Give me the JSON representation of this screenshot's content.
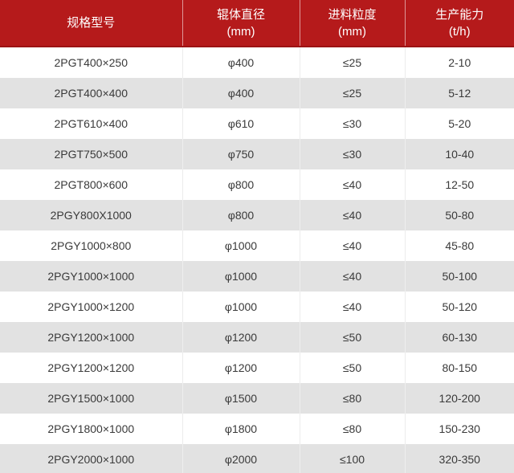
{
  "colors": {
    "header_bg": "#b51a1b",
    "header_bottom_border": "#9c1314",
    "header_text": "#ffffff",
    "row_alt_bg": "#e2e2e2",
    "row_bg": "#ffffff",
    "divider": "#ececec",
    "body_text": "#3a3a3a"
  },
  "table": {
    "columns": [
      {
        "label": "规格型号",
        "unit": ""
      },
      {
        "label": "辊体直径",
        "unit": "(mm)"
      },
      {
        "label": "进料粒度",
        "unit": "(mm)"
      },
      {
        "label": "生产能力",
        "unit": "(t/h)"
      }
    ],
    "rows": [
      {
        "model": "2PGT400×250",
        "diameter": "φ400",
        "feed_size": "≤25",
        "capacity": "2-10"
      },
      {
        "model": "2PGT400×400",
        "diameter": "φ400",
        "feed_size": "≤25",
        "capacity": "5-12"
      },
      {
        "model": "2PGT610×400",
        "diameter": "φ610",
        "feed_size": "≤30",
        "capacity": "5-20"
      },
      {
        "model": "2PGT750×500",
        "diameter": "φ750",
        "feed_size": "≤30",
        "capacity": "10-40"
      },
      {
        "model": "2PGT800×600",
        "diameter": "φ800",
        "feed_size": "≤40",
        "capacity": "12-50"
      },
      {
        "model": "2PGY800X1000",
        "diameter": "φ800",
        "feed_size": "≤40",
        "capacity": "50-80"
      },
      {
        "model": "2PGY1000×800",
        "diameter": "φ1000",
        "feed_size": "≤40",
        "capacity": "45-80"
      },
      {
        "model": "2PGY1000×1000",
        "diameter": "φ1000",
        "feed_size": "≤40",
        "capacity": "50-100"
      },
      {
        "model": "2PGY1000×1200",
        "diameter": "φ1000",
        "feed_size": "≤40",
        "capacity": "50-120"
      },
      {
        "model": "2PGY1200×1000",
        "diameter": "φ1200",
        "feed_size": "≤50",
        "capacity": "60-130"
      },
      {
        "model": "2PGY1200×1200",
        "diameter": "φ1200",
        "feed_size": "≤50",
        "capacity": "80-150"
      },
      {
        "model": "2PGY1500×1000",
        "diameter": "φ1500",
        "feed_size": "≤80",
        "capacity": "120-200"
      },
      {
        "model": "2PGY1800×1000",
        "diameter": "φ1800",
        "feed_size": "≤80",
        "capacity": "150-230"
      },
      {
        "model": "2PGY2000×1000",
        "diameter": "φ2000",
        "feed_size": "≤100",
        "capacity": "320-350"
      }
    ]
  },
  "chart_data": {
    "type": "table",
    "columns": [
      "规格型号",
      "辊体直径 (mm)",
      "进料粒度 (mm)",
      "生产能力 (t/h)"
    ],
    "rows": [
      [
        "2PGT400×250",
        "φ400",
        "≤25",
        "2-10"
      ],
      [
        "2PGT400×400",
        "φ400",
        "≤25",
        "5-12"
      ],
      [
        "2PGT610×400",
        "φ610",
        "≤30",
        "5-20"
      ],
      [
        "2PGT750×500",
        "φ750",
        "≤30",
        "10-40"
      ],
      [
        "2PGT800×600",
        "φ800",
        "≤40",
        "12-50"
      ],
      [
        "2PGY800X1000",
        "φ800",
        "≤40",
        "50-80"
      ],
      [
        "2PGY1000×800",
        "φ1000",
        "≤40",
        "45-80"
      ],
      [
        "2PGY1000×1000",
        "φ1000",
        "≤40",
        "50-100"
      ],
      [
        "2PGY1000×1200",
        "φ1000",
        "≤40",
        "50-120"
      ],
      [
        "2PGY1200×1000",
        "φ1200",
        "≤50",
        "60-130"
      ],
      [
        "2PGY1200×1200",
        "φ1200",
        "≤50",
        "80-150"
      ],
      [
        "2PGY1500×1000",
        "φ1500",
        "≤80",
        "120-200"
      ],
      [
        "2PGY1800×1000",
        "φ1800",
        "≤80",
        "150-230"
      ],
      [
        "2PGY2000×1000",
        "φ2000",
        "≤100",
        "320-350"
      ]
    ]
  }
}
